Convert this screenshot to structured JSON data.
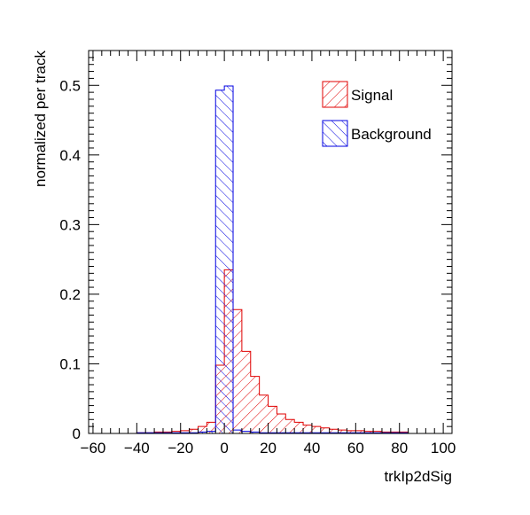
{
  "chart_data": {
    "type": "bar",
    "xlabel": "trkIp2dSig",
    "ylabel": "normalized per track",
    "xlim": [
      -62,
      104
    ],
    "ylim": [
      0,
      0.55
    ],
    "x_ticks": [
      -60,
      -40,
      -20,
      0,
      20,
      40,
      60,
      80,
      100
    ],
    "x_tick_labels": [
      "−60",
      "−40",
      "−20",
      "0",
      "20",
      "40",
      "60",
      "80",
      "100"
    ],
    "y_ticks": [
      0,
      0.1,
      0.2,
      0.3,
      0.4,
      0.5
    ],
    "y_tick_labels": [
      "0",
      "0.1",
      "0.2",
      "0.3",
      "0.4",
      "0.5"
    ],
    "bin_width": 4,
    "legend_position": "top-right",
    "series": [
      {
        "name": "Signal",
        "color": "#e00000",
        "hatch": "diagonal-right",
        "bins": [
          [
            -40,
            0.001
          ],
          [
            -36,
            0.001
          ],
          [
            -32,
            0.002
          ],
          [
            -28,
            0.002
          ],
          [
            -24,
            0.003
          ],
          [
            -20,
            0.004
          ],
          [
            -16,
            0.006
          ],
          [
            -12,
            0.01
          ],
          [
            -8,
            0.016
          ],
          [
            -4,
            0.098
          ],
          [
            0,
            0.235
          ],
          [
            4,
            0.178
          ],
          [
            8,
            0.118
          ],
          [
            12,
            0.082
          ],
          [
            16,
            0.055
          ],
          [
            20,
            0.039
          ],
          [
            24,
            0.028
          ],
          [
            28,
            0.02
          ],
          [
            32,
            0.016
          ],
          [
            36,
            0.012
          ],
          [
            40,
            0.01
          ],
          [
            44,
            0.008
          ],
          [
            48,
            0.006
          ],
          [
            52,
            0.005
          ],
          [
            56,
            0.004
          ],
          [
            60,
            0.004
          ],
          [
            64,
            0.003
          ],
          [
            68,
            0.003
          ],
          [
            72,
            0.002
          ],
          [
            76,
            0.002
          ],
          [
            80,
            0.002
          ]
        ]
      },
      {
        "name": "Background",
        "color": "#0000e0",
        "hatch": "diagonal-left",
        "bins": [
          [
            -40,
            0.001
          ],
          [
            -36,
            0.001
          ],
          [
            -32,
            0.001
          ],
          [
            -28,
            0.001
          ],
          [
            -24,
            0.001
          ],
          [
            -20,
            0.001
          ],
          [
            -16,
            0.001
          ],
          [
            -12,
            0.002
          ],
          [
            -8,
            0.003
          ],
          [
            -4,
            0.493
          ],
          [
            0,
            0.499
          ],
          [
            4,
            0.005
          ],
          [
            8,
            0.003
          ],
          [
            12,
            0.002
          ],
          [
            16,
            0.001
          ],
          [
            20,
            0.001
          ],
          [
            24,
            0.001
          ],
          [
            28,
            0.001
          ],
          [
            32,
            0.001
          ],
          [
            36,
            0.001
          ],
          [
            40,
            0.001
          ],
          [
            44,
            0.001
          ],
          [
            48,
            0.001
          ],
          [
            52,
            0.001
          ],
          [
            56,
            0.001
          ],
          [
            60,
            0.001
          ],
          [
            64,
            0.001
          ],
          [
            68,
            0.001
          ],
          [
            72,
            0.001
          ],
          [
            76,
            0.001
          ],
          [
            80,
            0.001
          ]
        ]
      }
    ]
  }
}
